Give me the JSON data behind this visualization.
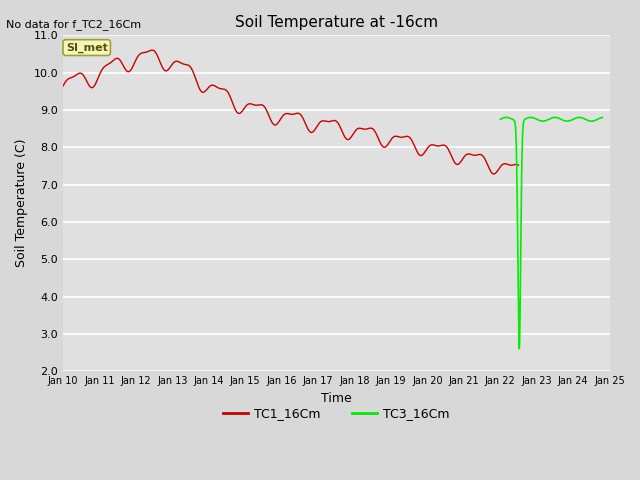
{
  "title": "Soil Temperature at -16cm",
  "xlabel": "Time",
  "ylabel": "Soil Temperature (C)",
  "annotation_text": "No data for f_TC2_16Cm",
  "si_met_label": "SI_met",
  "ylim": [
    2.0,
    11.0
  ],
  "yticks": [
    2.0,
    3.0,
    4.0,
    5.0,
    6.0,
    7.0,
    8.0,
    9.0,
    10.0,
    11.0
  ],
  "xtick_labels": [
    "Jan 10",
    "Jan 11",
    "Jan 12",
    "Jan 13",
    "Jan 14",
    "Jan 15",
    "Jan 16",
    "Jan 17",
    "Jan 18",
    "Jan 19",
    "Jan 20",
    "Jan 21",
    "Jan 22",
    "Jan 23",
    "Jan 24",
    "Jan 25"
  ],
  "fig_bg_color": "#d8d8d8",
  "plot_bg_color": "#e0e0e0",
  "tc1_color": "#cc0000",
  "tc3_color": "#00ee00",
  "legend_entries": [
    "TC1_16Cm",
    "TC3_16Cm"
  ],
  "si_met_facecolor": "#f5f5c0",
  "si_met_edgecolor": "#a0a030"
}
